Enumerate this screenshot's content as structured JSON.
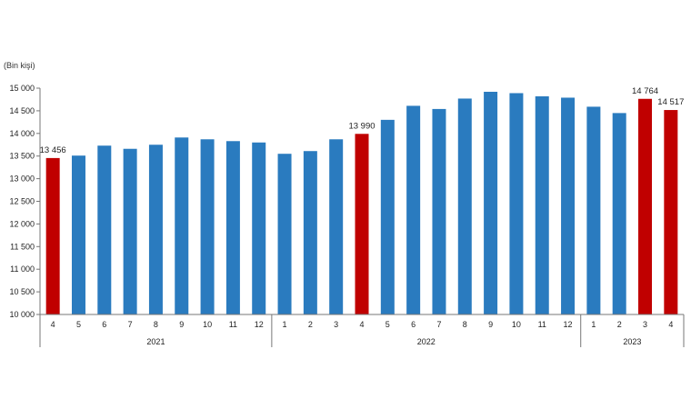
{
  "chart_data": {
    "type": "bar",
    "unit_label": "(Bin kişi)",
    "ylim": [
      10000,
      15000
    ],
    "yticks": [
      "10 000",
      "10 500",
      "11 000",
      "11 500",
      "12 000",
      "12 500",
      "13 000",
      "13 500",
      "14 000",
      "14 500",
      "15 000"
    ],
    "groups": [
      {
        "label": "2021",
        "count": 9
      },
      {
        "label": "2022",
        "count": 12
      },
      {
        "label": "2023",
        "count": 4
      }
    ],
    "categories": [
      "4",
      "5",
      "6",
      "7",
      "8",
      "9",
      "10",
      "11",
      "12",
      "1",
      "2",
      "3",
      "4",
      "5",
      "6",
      "7",
      "8",
      "9",
      "10",
      "11",
      "12",
      "1",
      "2",
      "3",
      "4"
    ],
    "values": [
      13456,
      13510,
      13730,
      13660,
      13750,
      13910,
      13870,
      13830,
      13800,
      13550,
      13610,
      13870,
      13990,
      14300,
      14610,
      14540,
      14770,
      14920,
      14890,
      14820,
      14790,
      14590,
      14450,
      14764,
      14517
    ],
    "highlight": [
      true,
      false,
      false,
      false,
      false,
      false,
      false,
      false,
      false,
      false,
      false,
      false,
      true,
      false,
      false,
      false,
      false,
      false,
      false,
      false,
      false,
      false,
      false,
      true,
      true
    ],
    "data_labels": [
      "13 456",
      "",
      "",
      "",
      "",
      "",
      "",
      "",
      "",
      "",
      "",
      "",
      "13 990",
      "",
      "",
      "",
      "",
      "",
      "",
      "",
      "",
      "",
      "",
      "14 764",
      "14 517"
    ],
    "colors": {
      "base": "#2a7bbf",
      "highlight": "#c00000",
      "axis": "#777777"
    },
    "grid": false,
    "legend": "none"
  }
}
